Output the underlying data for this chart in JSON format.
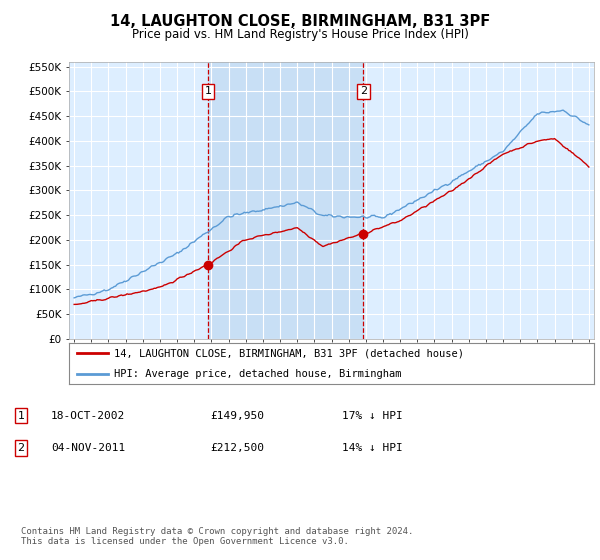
{
  "title": "14, LAUGHTON CLOSE, BIRMINGHAM, B31 3PF",
  "subtitle": "Price paid vs. HM Land Registry's House Price Index (HPI)",
  "hpi_color": "#5b9bd5",
  "price_color": "#cc0000",
  "bg_color": "#ffffff",
  "plot_bg_color": "#ddeeff",
  "shade_color": "#c8dff5",
  "grid_color": "#cccccc",
  "ylim": [
    0,
    560000
  ],
  "yticks": [
    0,
    50000,
    100000,
    150000,
    200000,
    250000,
    300000,
    350000,
    400000,
    450000,
    500000,
    550000
  ],
  "ytick_labels": [
    "£0",
    "£50K",
    "£100K",
    "£150K",
    "£200K",
    "£250K",
    "£300K",
    "£350K",
    "£400K",
    "£450K",
    "£500K",
    "£550K"
  ],
  "sale1_year": 2002.8,
  "sale1_price": 149950,
  "sale2_year": 2011.85,
  "sale2_price": 212500,
  "legend_line1": "14, LAUGHTON CLOSE, BIRMINGHAM, B31 3PF (detached house)",
  "legend_line2": "HPI: Average price, detached house, Birmingham",
  "table_row1": [
    "1",
    "18-OCT-2002",
    "£149,950",
    "17% ↓ HPI"
  ],
  "table_row2": [
    "2",
    "04-NOV-2011",
    "£212,500",
    "14% ↓ HPI"
  ],
  "footer": "Contains HM Land Registry data © Crown copyright and database right 2024.\nThis data is licensed under the Open Government Licence v3.0.",
  "x_start_year": 1995,
  "x_end_year": 2025
}
